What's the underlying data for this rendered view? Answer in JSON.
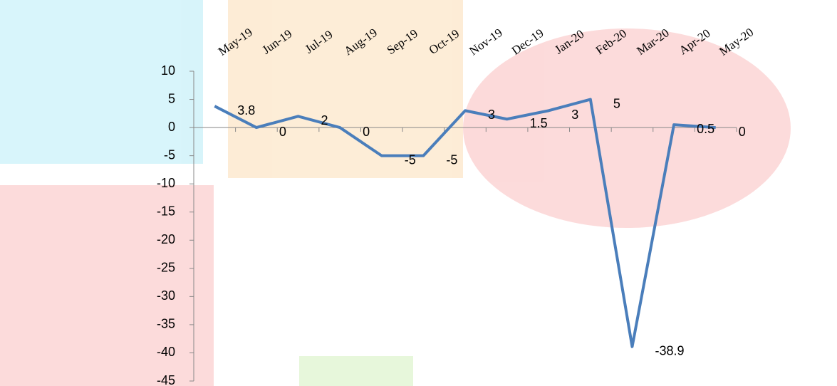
{
  "chart_data": {
    "type": "line",
    "categories": [
      "May-19",
      "Jun-19",
      "Jul-19",
      "Aug-19",
      "Sep-19",
      "Oct-19",
      "Nov-19",
      "Dec-19",
      "Jan-20",
      "Feb-20",
      "Mar-20",
      "Apr-20",
      "May-20"
    ],
    "series": [
      {
        "name": null,
        "color": "#4a7ebb",
        "values": [
          3.8,
          0,
          2,
          0,
          -5,
          -5,
          3,
          1.5,
          3,
          5,
          -38.9,
          0.5,
          0
        ]
      }
    ],
    "ylim": [
      -45,
      10
    ],
    "yticks": [
      10,
      5,
      0,
      -5,
      -10,
      -15,
      -20,
      -25,
      -30,
      -35,
      -40,
      -45
    ],
    "data_labels": true
  }
}
